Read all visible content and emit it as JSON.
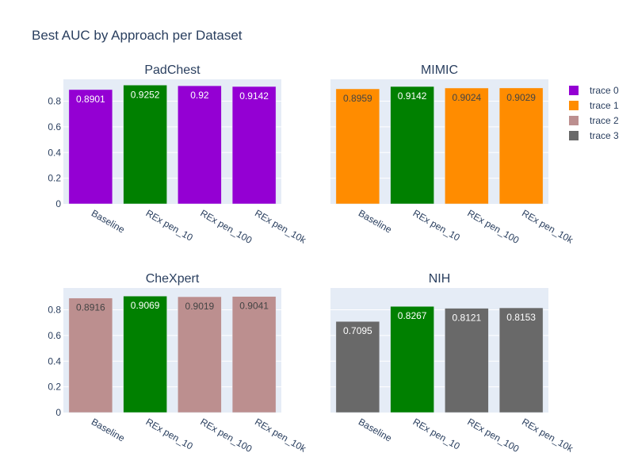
{
  "figure": {
    "title": "Best AUC by Approach per Dataset",
    "legend": {
      "placement": "top-right",
      "entries": [
        {
          "label": "trace 0",
          "color": "#9400D3"
        },
        {
          "label": "trace 1",
          "color": "#FF8C00"
        },
        {
          "label": "trace 2",
          "color": "#BC8F8F"
        },
        {
          "label": "trace 3",
          "color": "#696969"
        }
      ]
    },
    "highlight_color": "#008000",
    "plot_bg": "#E5ECF6",
    "grid_color": "#ffffff",
    "text_color": "#2a3f5f"
  },
  "chart_data": [
    {
      "type": "bar",
      "title": "PadChest",
      "categories": [
        "Baseline",
        "REx pen_10",
        "REx pen_100",
        "REx pen_10k"
      ],
      "values": [
        0.8901,
        0.9252,
        0.92,
        0.9142
      ],
      "value_labels": [
        "0.8901",
        "0.9252",
        "0.92",
        "0.9142"
      ],
      "bar_colors": [
        "#9400D3",
        "#008000",
        "#9400D3",
        "#9400D3"
      ],
      "label_color": "#ffffff",
      "yticks": [
        "0",
        "0.2",
        "0.4",
        "0.6",
        "0.8"
      ],
      "ylim": [
        0,
        0.97
      ],
      "grid": true
    },
    {
      "type": "bar",
      "title": "MIMIC",
      "categories": [
        "Baseline",
        "REx pen_10",
        "REx pen_100",
        "REx pen_10k"
      ],
      "values": [
        0.8959,
        0.9142,
        0.9024,
        0.9029
      ],
      "value_labels": [
        "0.8959",
        "0.9142",
        "0.9024",
        "0.9029"
      ],
      "bar_colors": [
        "#FF8C00",
        "#008000",
        "#FF8C00",
        "#FF8C00"
      ],
      "label_color": "#444444",
      "yticks": [],
      "ylim": [
        0,
        0.97
      ],
      "grid": true
    },
    {
      "type": "bar",
      "title": "CheXpert",
      "categories": [
        "Baseline",
        "REx pen_10",
        "REx pen_100",
        "REx pen_10k"
      ],
      "values": [
        0.8916,
        0.9069,
        0.9019,
        0.9041
      ],
      "value_labels": [
        "0.8916",
        "0.9069",
        "0.9019",
        "0.9041"
      ],
      "bar_colors": [
        "#BC8F8F",
        "#008000",
        "#BC8F8F",
        "#BC8F8F"
      ],
      "label_color": "#444444",
      "yticks": [
        "0",
        "0.2",
        "0.4",
        "0.6",
        "0.8"
      ],
      "ylim": [
        0,
        0.97
      ],
      "grid": true
    },
    {
      "type": "bar",
      "title": "NIH",
      "categories": [
        "Baseline",
        "REx pen_10",
        "REx pen_100",
        "REx pen_10k"
      ],
      "values": [
        0.7095,
        0.8267,
        0.8121,
        0.8153
      ],
      "value_labels": [
        "0.7095",
        "0.8267",
        "0.8121",
        "0.8153"
      ],
      "bar_colors": [
        "#696969",
        "#008000",
        "#696969",
        "#696969"
      ],
      "label_color": "#ffffff",
      "yticks": [],
      "ylim": [
        0,
        0.97
      ],
      "grid": true
    }
  ]
}
